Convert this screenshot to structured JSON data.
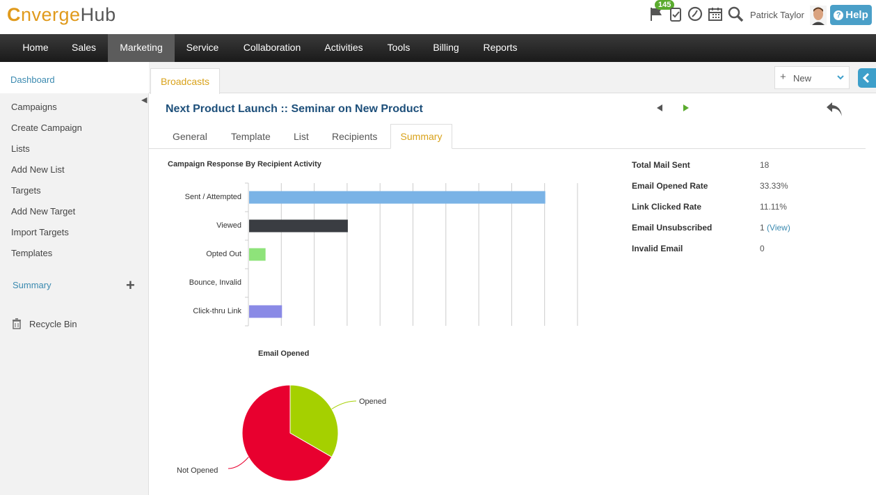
{
  "header": {
    "logo_c": "C",
    "logo_rest": "nverge",
    "logo_hub": "Hub",
    "notification_count": "145",
    "user_name": "Patrick Taylor",
    "help_label": "Help",
    "help_mark": "?"
  },
  "nav": {
    "items": [
      "Home",
      "Sales",
      "Marketing",
      "Service",
      "Collaboration",
      "Activities",
      "Tools",
      "Billing",
      "Reports"
    ],
    "active": "Marketing"
  },
  "sidebar": {
    "dashboard": "Dashboard",
    "items": [
      "Campaigns",
      "Create Campaign",
      "Lists",
      "Add New List",
      "Targets",
      "Add New Target",
      "Import Targets",
      "Templates"
    ],
    "summary": "Summary",
    "recycle_bin": "Recycle Bin"
  },
  "main": {
    "module_tab": "Broadcasts",
    "new_button": "New",
    "title": "Next Product Launch :: Seminar on New Product",
    "tabs": [
      "General",
      "Template",
      "List",
      "Recipients",
      "Summary"
    ],
    "active_tab": "Summary"
  },
  "stats": [
    {
      "label": "Total Mail Sent",
      "value": "18"
    },
    {
      "label": "Email Opened Rate",
      "value": "33.33%"
    },
    {
      "label": "Link Clicked Rate",
      "value": "11.11%"
    },
    {
      "label": "Email Unsubscribed",
      "value": "1",
      "link": "(View)"
    },
    {
      "label": "Invalid Email",
      "value": "0"
    }
  ],
  "chart_data": [
    {
      "type": "bar",
      "orientation": "horizontal",
      "title": "Campaign Response By Recipient Activity",
      "categories": [
        "Sent / Attempted",
        "Viewed",
        "Opted Out",
        "Bounce, Invalid",
        "Click-thru Link"
      ],
      "values": [
        18,
        6,
        1,
        0,
        2
      ],
      "colors": [
        "#7ab3e6",
        "#3a3d42",
        "#8ee37a",
        "#cccccc",
        "#8a8ae6"
      ],
      "xlim": [
        0,
        20
      ],
      "grid": true
    },
    {
      "type": "pie",
      "title": "Email Opened",
      "labels": [
        "Opened",
        "Not Opened"
      ],
      "values": [
        33.33,
        66.67
      ],
      "colors": [
        "#a5d000",
        "#e8002f"
      ]
    }
  ]
}
